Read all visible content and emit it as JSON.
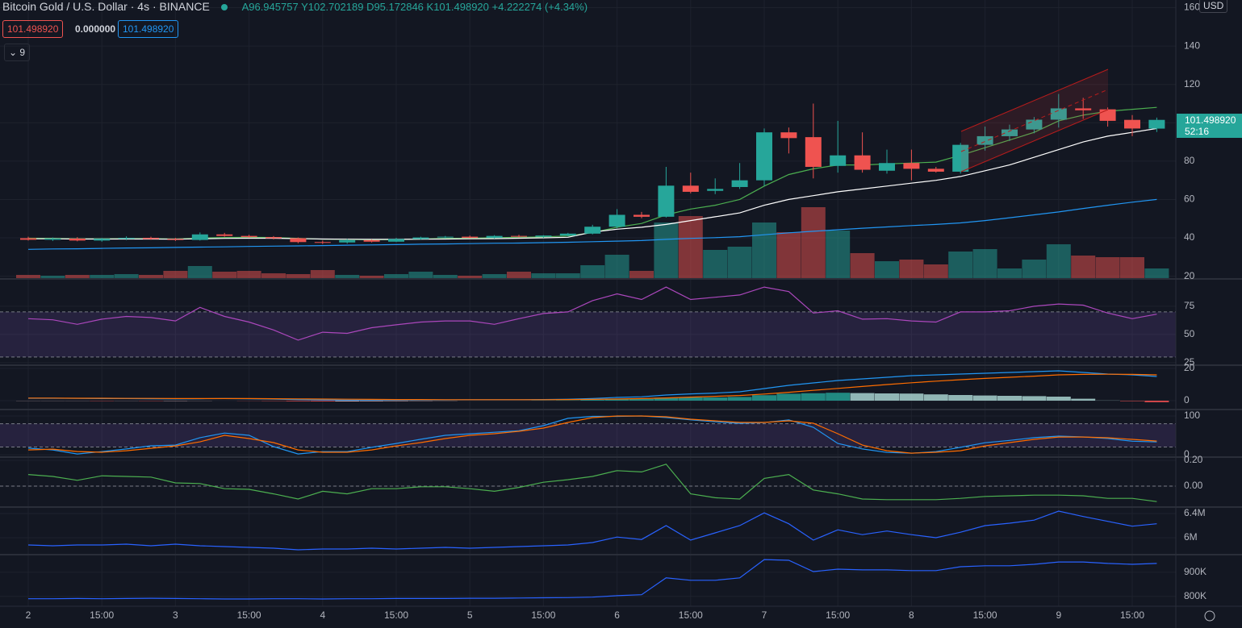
{
  "header": {
    "title": "Bitcoin Gold / U.S. Dollar",
    "interval": "4s",
    "exchange": "BINANCE",
    "ohlc_labels": [
      "A96.945757",
      "Y102.702189",
      "D95.172846",
      "K101.498920"
    ],
    "change": "+4.222274 (+4.34%)",
    "inputs": [
      "101.498920",
      "0.000000",
      "101.498920"
    ],
    "collapse": "9",
    "currency": "USD",
    "last_price": "101.498920",
    "countdown": "52:16"
  },
  "chart_data": [
    {
      "type": "candlestick",
      "up_color": "#26a69a",
      "down_color": "#ef5350",
      "grid": true,
      "categories": [
        "2",
        null,
        null,
        "15:00",
        null,
        null,
        "3",
        null,
        null,
        "15:00",
        null,
        null,
        "4",
        null,
        null,
        "15:00",
        null,
        null,
        "5",
        null,
        null,
        "15:00",
        null,
        null,
        "6",
        null,
        null,
        "15:00",
        null,
        null,
        "7",
        null,
        null,
        "15:00",
        null,
        null,
        "8",
        null,
        null,
        "15:00",
        null,
        null,
        "9",
        null,
        null,
        "15:00",
        null
      ],
      "ohlc": [
        [
          39.8,
          40.6,
          38.6,
          39.0
        ],
        [
          39.0,
          40.2,
          38.4,
          39.6
        ],
        [
          39.6,
          40.4,
          38.2,
          38.6
        ],
        [
          38.6,
          40.0,
          38.0,
          39.5
        ],
        [
          39.5,
          40.8,
          38.8,
          40.0
        ],
        [
          40.0,
          40.6,
          39.0,
          39.4
        ],
        [
          39.4,
          40.0,
          38.4,
          38.9
        ],
        [
          38.9,
          42.8,
          38.6,
          41.8
        ],
        [
          41.8,
          42.6,
          40.6,
          41.0
        ],
        [
          41.0,
          41.6,
          40.0,
          40.4
        ],
        [
          40.4,
          40.9,
          39.2,
          39.8
        ],
        [
          39.8,
          40.2,
          37.2,
          37.8
        ],
        [
          37.8,
          38.6,
          36.8,
          37.6
        ],
        [
          37.6,
          39.4,
          37.0,
          38.8
        ],
        [
          38.8,
          39.2,
          37.6,
          38.0
        ],
        [
          38.0,
          40.0,
          37.8,
          39.4
        ],
        [
          39.4,
          40.6,
          39.0,
          40.2
        ],
        [
          40.2,
          41.0,
          39.6,
          40.6
        ],
        [
          40.6,
          41.2,
          39.8,
          40.0
        ],
        [
          40.0,
          41.4,
          39.6,
          41.0
        ],
        [
          41.0,
          41.6,
          40.2,
          40.6
        ],
        [
          40.6,
          41.4,
          40.0,
          41.2
        ],
        [
          41.2,
          42.6,
          40.8,
          42.2
        ],
        [
          42.2,
          46.8,
          41.8,
          45.8
        ],
        [
          45.8,
          55.0,
          45.0,
          52.0
        ],
        [
          52.0,
          53.5,
          50.2,
          51.0
        ],
        [
          51.0,
          77.0,
          50.6,
          67.2
        ],
        [
          67.2,
          74.0,
          63.2,
          64.0
        ],
        [
          64.5,
          71.0,
          62.8,
          65.5
        ],
        [
          66.5,
          79.0,
          65.5,
          70.0
        ],
        [
          70.0,
          97.0,
          67.0,
          95.0
        ],
        [
          95.0,
          97.5,
          84.0,
          92.0
        ],
        [
          92.5,
          110.0,
          71.0,
          77.0
        ],
        [
          77.5,
          101.0,
          74.0,
          83.0
        ],
        [
          83.0,
          95.0,
          74.0,
          75.5
        ],
        [
          75.0,
          86.0,
          73.5,
          79.0
        ],
        [
          79.0,
          86.0,
          70.0,
          76.0
        ],
        [
          76.0,
          77.0,
          74.0,
          74.5
        ],
        [
          74.5,
          89.5,
          73.5,
          88.5
        ],
        [
          88.5,
          98.0,
          85.5,
          93.0
        ],
        [
          93.0,
          99.0,
          90.5,
          96.5
        ],
        [
          96.5,
          103.0,
          94.5,
          101.6
        ],
        [
          101.6,
          115.0,
          97.5,
          107.5
        ],
        [
          107.5,
          113.0,
          102.0,
          106.5
        ],
        [
          107.0,
          108.0,
          98.0,
          101.0
        ],
        [
          101.5,
          104.0,
          93.0,
          97.0
        ],
        [
          96.945757,
          102.702189,
          95.172846,
          101.49892
        ]
      ],
      "volume": [
        4,
        3,
        4,
        4,
        5,
        4,
        9,
        15,
        8,
        9,
        6,
        5,
        10,
        4,
        3,
        5,
        8,
        4,
        3,
        5,
        8,
        6,
        6,
        16,
        29,
        9,
        69,
        77,
        35,
        39,
        69,
        57,
        88,
        59,
        31,
        21,
        23,
        17,
        33,
        36,
        12,
        23,
        42,
        28,
        26,
        26,
        12
      ],
      "volume_ylim": [
        0,
        345
      ],
      "lines": [
        {
          "color": "#4caf50",
          "values": [
            39.8,
            39.7,
            39.5,
            39.5,
            39.6,
            39.6,
            39.4,
            39.9,
            40.2,
            40.3,
            40.2,
            39.7,
            39.3,
            39.2,
            39.0,
            39.1,
            39.4,
            39.7,
            39.8,
            40.1,
            40.3,
            40.5,
            41.0,
            42.7,
            45.5,
            47.5,
            52,
            55,
            57,
            60,
            67,
            73,
            76,
            78,
            78,
            78.5,
            79,
            79.5,
            83,
            87,
            91,
            95,
            101,
            104,
            106,
            107,
            108
          ]
        },
        {
          "color": "#ffffff",
          "values": [
            39.5,
            39.5,
            39.4,
            39.4,
            39.4,
            39.4,
            39.3,
            39.5,
            39.7,
            39.8,
            39.8,
            39.6,
            39.4,
            39.3,
            39.2,
            39.2,
            39.3,
            39.4,
            39.5,
            39.6,
            39.8,
            40.0,
            40.3,
            43,
            44.5,
            45.5,
            47,
            49,
            51,
            53,
            57,
            60,
            62,
            64,
            65.5,
            67,
            68.5,
            70,
            72,
            75,
            78,
            82,
            86,
            90,
            93,
            95,
            97
          ]
        },
        {
          "color": "#2196f3",
          "values": [
            34.0,
            34.2,
            34.3,
            34.5,
            34.7,
            34.8,
            35.0,
            35.2,
            35.3,
            35.5,
            35.7,
            35.8,
            36.0,
            36.2,
            36.3,
            36.5,
            36.7,
            36.8,
            37.0,
            37.2,
            37.3,
            37.5,
            37.7,
            38.0,
            38.3,
            38.6,
            39.2,
            39.7,
            40.1,
            40.6,
            41.6,
            42.6,
            43.4,
            44.2,
            45.0,
            45.7,
            46.4,
            47.0,
            47.8,
            49,
            50.5,
            52,
            53.5,
            55.3,
            57,
            58.6,
            60
          ]
        }
      ],
      "ylim": [
        19,
        164
      ],
      "yticks": [
        20,
        40,
        60,
        80,
        100,
        120,
        140,
        160
      ]
    },
    {
      "type": "line",
      "grid": true,
      "series": [
        {
          "color": "#ab47bc",
          "values": [
            64,
            63,
            59,
            63.6,
            66,
            65,
            62,
            74,
            66,
            61,
            54,
            45,
            52,
            51,
            56,
            58.6,
            61,
            62,
            62,
            59,
            64,
            68.6,
            70,
            80,
            86,
            81,
            92,
            81,
            83,
            85,
            92,
            88,
            69,
            71,
            63.6,
            64,
            62,
            61,
            70,
            70,
            71,
            75,
            77,
            76,
            69,
            64,
            68
          ]
        }
      ],
      "hlines": [
        70,
        30
      ],
      "band_color": "#7e57c2",
      "ylim": [
        23.5,
        98.5
      ],
      "yticks": [
        25,
        50,
        75
      ]
    },
    {
      "type": "macd",
      "grid": true,
      "histogram": [
        -0.1,
        -0.1,
        -0.1,
        -0.2,
        -0.1,
        -0.2,
        -0.2,
        -0.1,
        0,
        -0.1,
        -0.2,
        -0.4,
        -0.5,
        -0.5,
        -0.4,
        -0.3,
        -0.2,
        -0.1,
        0,
        0,
        0,
        0.1,
        0.2,
        0.5,
        1.0,
        1.1,
        1.8,
        2.0,
        2.0,
        2.3,
        3.4,
        4.3,
        4.6,
        4.9,
        4.7,
        4.5,
        4.4,
        3.9,
        3.5,
        3.2,
        3.0,
        2.8,
        2.5,
        1.2,
        0.1,
        -0.3,
        -1.0
      ],
      "series": [
        {
          "color": "#2196f3",
          "values": [
            1.5,
            1.5,
            1.4,
            1.3,
            1.3,
            1.2,
            1.1,
            1.2,
            1.3,
            1.2,
            1.0,
            0.7,
            0.5,
            0.4,
            0.4,
            0.4,
            0.5,
            0.5,
            0.6,
            0.6,
            0.6,
            0.7,
            0.9,
            1.3,
            2.0,
            2.4,
            3.5,
            4.2,
            4.7,
            5.5,
            7.5,
            9.5,
            11.0,
            12.5,
            13.5,
            14.5,
            15.5,
            16.0,
            16.5,
            17.0,
            17.5,
            18.0,
            18.5,
            17.5,
            16.5,
            16.0,
            15.0
          ]
        },
        {
          "color": "#ff6d00",
          "values": [
            1.6,
            1.6,
            1.5,
            1.5,
            1.4,
            1.4,
            1.3,
            1.3,
            1.3,
            1.3,
            1.2,
            1.1,
            1.0,
            0.9,
            0.8,
            0.7,
            0.7,
            0.6,
            0.6,
            0.6,
            0.6,
            0.6,
            0.7,
            0.8,
            1.0,
            1.3,
            1.7,
            2.2,
            2.7,
            3.2,
            4.1,
            5.2,
            6.4,
            7.6,
            8.8,
            10.0,
            11.1,
            12.1,
            13.0,
            13.8,
            14.5,
            15.2,
            16.0,
            16.3,
            16.4,
            16.3,
            16.0
          ]
        }
      ],
      "ylim": [
        -5,
        21.5
      ],
      "yticks": [
        0,
        20
      ]
    },
    {
      "type": "line",
      "grid": true,
      "series": [
        {
          "color": "#2196f3",
          "values": [
            17,
            12.5,
            2,
            8,
            15,
            23,
            25,
            44,
            56,
            50,
            21,
            2,
            8,
            8,
            19,
            29,
            40,
            50,
            54,
            58,
            62,
            75,
            94,
            99,
            99,
            100,
            96,
            90,
            85,
            81,
            83,
            90,
            71,
            29,
            15,
            6,
            4,
            8,
            19,
            31,
            37,
            44,
            48,
            46,
            42,
            35,
            33
          ]
        },
        {
          "color": "#ff6d00",
          "values": [
            12.5,
            14.6,
            8.3,
            6.3,
            10.4,
            16.7,
            22.9,
            33.3,
            50,
            41.7,
            31.3,
            12.5,
            6.3,
            6.3,
            12.5,
            22.9,
            31.3,
            41.7,
            50,
            54.2,
            60.4,
            68.8,
            83.3,
            95.8,
            100,
            100,
            97.9,
            91.7,
            87.5,
            83.3,
            83.3,
            87.5,
            81.3,
            54.2,
            25,
            10.4,
            4.2,
            6.3,
            10.4,
            22.9,
            31.3,
            39.6,
            45.8,
            45.8,
            43.8,
            39.6,
            35.4
          ]
        }
      ],
      "hlines": [
        80,
        20
      ],
      "band_color": "#7e57c2",
      "ylim": [
        -4,
        114.6
      ],
      "yticks": [
        0,
        100
      ]
    },
    {
      "type": "line",
      "grid": true,
      "series": [
        {
          "color": "#4caf50",
          "values": [
            0.09,
            0.075,
            0.045,
            0.08,
            0.075,
            0.07,
            0.025,
            0.02,
            -0.02,
            -0.025,
            -0.06,
            -0.1,
            -0.04,
            -0.06,
            -0.02,
            -0.02,
            -0.005,
            -0.005,
            -0.02,
            -0.04,
            -0.01,
            0.03,
            0.05,
            0.075,
            0.12,
            0.11,
            0.17,
            -0.06,
            -0.09,
            -0.1,
            0.06,
            0.09,
            -0.03,
            -0.06,
            -0.1,
            -0.105,
            -0.105,
            -0.105,
            -0.095,
            -0.08,
            -0.075,
            -0.07,
            -0.07,
            -0.075,
            -0.095,
            -0.095,
            -0.12
          ]
        }
      ],
      "hlines": [
        0
      ],
      "ylim": [
        -0.156,
        0.219
      ],
      "yticks": [
        {
          "value": 0,
          "label": "0.00"
        },
        {
          "value": 0.2,
          "label": "0.20"
        }
      ]
    },
    {
      "type": "line",
      "grid": true,
      "series": [
        {
          "color": "#2962ff",
          "values": [
            5880000,
            5867000,
            5880000,
            5880000,
            5893000,
            5867000,
            5893000,
            5867000,
            5853000,
            5840000,
            5827000,
            5800000,
            5813000,
            5813000,
            5827000,
            5813000,
            5827000,
            5840000,
            5827000,
            5840000,
            5853000,
            5867000,
            5880000,
            5920000,
            6010000,
            5970000,
            6200000,
            5960000,
            6080000,
            6200000,
            6410000,
            6230000,
            5960000,
            6130000,
            6050000,
            6110000,
            6050000,
            6000000,
            6090000,
            6200000,
            6240000,
            6290000,
            6440000,
            6350000,
            6270000,
            6190000,
            6230000
          ]
        }
      ],
      "ylim": [
        5733000,
        6493000
      ],
      "yticks": [
        {
          "value": 6000000,
          "label": "6M"
        },
        {
          "value": 6400000,
          "label": "6.4M"
        }
      ]
    },
    {
      "type": "line",
      "grid": true,
      "series": [
        {
          "color": "#2962ff",
          "values": [
            790000,
            790000,
            791000,
            790000,
            791000,
            792000,
            791000,
            790000,
            789000,
            789000,
            790000,
            790000,
            789000,
            790000,
            790000,
            791000,
            791000,
            791000,
            792000,
            792000,
            793000,
            794000,
            795000,
            797000,
            803000,
            807000,
            877000,
            867000,
            867000,
            877000,
            953000,
            950000,
            903000,
            913000,
            910000,
            910000,
            907000,
            907000,
            923000,
            927000,
            927000,
            933000,
            943000,
            943000,
            937000,
            933000,
            937000
          ]
        }
      ],
      "ylim": [
        759000,
        970000
      ],
      "yticks": [
        {
          "value": 800000,
          "label": "800K"
        },
        {
          "value": 900000,
          "label": "900K"
        }
      ]
    }
  ]
}
